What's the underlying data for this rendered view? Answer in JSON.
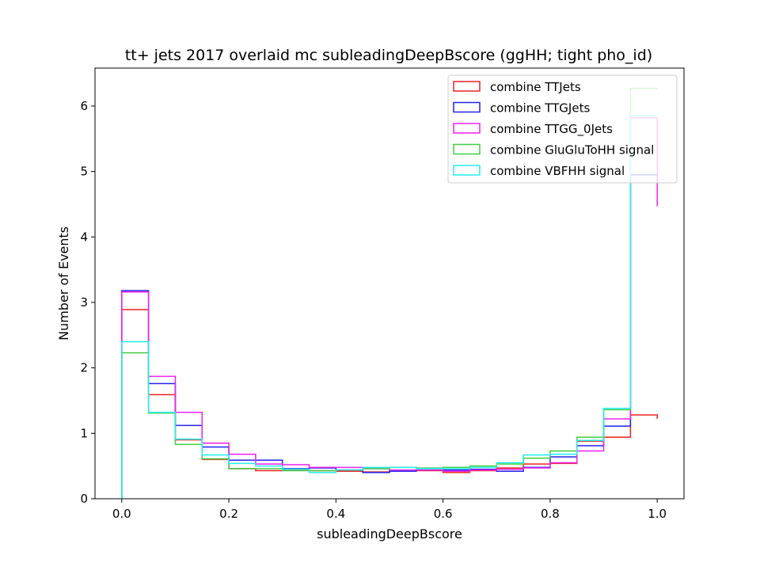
{
  "chart_data": {
    "type": "histogram",
    "title": "tt+ jets 2017 overlaid mc subleadingDeepBscore (ggHH; tight pho_id)",
    "xlabel": "subleadingDeepBscore",
    "ylabel": "Number of Events",
    "xlim": [
      -0.05,
      1.05
    ],
    "ylim": [
      0,
      6.58
    ],
    "xticks": [
      "0.0",
      "0.2",
      "0.4",
      "0.6",
      "0.8",
      "1.0"
    ],
    "yticks": [
      "0",
      "1",
      "2",
      "3",
      "4",
      "5",
      "6"
    ],
    "bin_edges": [
      0.0,
      0.05,
      0.1,
      0.15,
      0.2,
      0.25,
      0.3,
      0.35,
      0.4,
      0.45,
      0.5,
      0.55,
      0.6,
      0.65,
      0.7,
      0.75,
      0.8,
      0.85,
      0.9,
      0.95,
      1.0
    ],
    "legend_position": "top-right",
    "grid": false,
    "series": [
      {
        "name": "combine TTJets",
        "color": "#ee2222",
        "values": [
          2.89,
          1.59,
          0.9,
          0.6,
          0.46,
          0.43,
          0.44,
          0.43,
          0.42,
          0.41,
          0.42,
          0.43,
          0.4,
          0.43,
          0.47,
          0.53,
          0.54,
          0.88,
          0.94,
          1.28,
          1.22
        ]
      },
      {
        "name": "combine TTGJets",
        "color": "#2222ee",
        "values": [
          3.18,
          1.76,
          1.12,
          0.79,
          0.59,
          0.59,
          0.46,
          0.47,
          0.44,
          0.4,
          0.42,
          0.44,
          0.44,
          0.45,
          0.42,
          0.48,
          0.64,
          0.81,
          1.11,
          4.95,
          4.95
        ]
      },
      {
        "name": "combine TTGG_0Jets",
        "color": "#ee22ee",
        "values": [
          3.16,
          1.87,
          1.32,
          0.85,
          0.68,
          0.53,
          0.52,
          0.48,
          0.48,
          0.46,
          0.44,
          0.44,
          0.42,
          0.44,
          0.45,
          0.47,
          0.55,
          0.73,
          1.22,
          5.82,
          4.47
        ]
      },
      {
        "name": "combine GluGluToHH signal",
        "color": "#44cc44",
        "values": [
          2.23,
          1.31,
          0.83,
          0.61,
          0.46,
          0.46,
          0.43,
          0.43,
          0.44,
          0.46,
          0.48,
          0.47,
          0.48,
          0.5,
          0.53,
          0.62,
          0.73,
          0.94,
          1.36,
          6.27,
          6.27
        ]
      },
      {
        "name": "combine VBFHH signal",
        "color": "#22eeee",
        "values": [
          2.4,
          1.32,
          0.91,
          0.67,
          0.54,
          0.5,
          0.45,
          0.4,
          0.44,
          0.48,
          0.48,
          0.46,
          0.46,
          0.48,
          0.55,
          0.67,
          0.68,
          0.89,
          1.38,
          5.85,
          5.85
        ]
      }
    ]
  }
}
